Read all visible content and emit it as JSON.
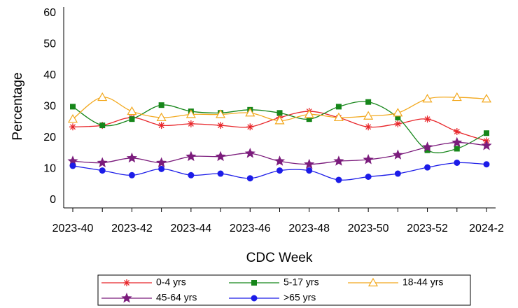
{
  "chart_data": {
    "type": "line",
    "x_label": "CDC Week",
    "y_label": "Percentage",
    "categories": [
      "2023-40",
      null,
      "2023-42",
      null,
      "2023-44",
      null,
      "2023-46",
      null,
      "2023-48",
      null,
      "2023-50",
      null,
      "2023-52",
      null,
      "2024-2"
    ],
    "series": [
      {
        "name": "0-4 yrs",
        "color": "#e8262a",
        "marker": "asterisk",
        "values": [
          23.5,
          24,
          26.5,
          24,
          24.5,
          24,
          23.5,
          26.5,
          28.5,
          26.5,
          23.5,
          24.5,
          26,
          22,
          19
        ]
      },
      {
        "name": "5-17 yrs",
        "color": "#16861a",
        "marker": "square",
        "values": [
          30,
          24,
          26,
          30.5,
          28.5,
          28,
          29,
          28,
          26,
          30,
          31.5,
          26.5,
          16,
          16.5,
          21.5
        ]
      },
      {
        "name": "18-44 yrs",
        "color": "#f2a81d",
        "marker": "triangle",
        "values": [
          26,
          33,
          28.5,
          26.5,
          27.5,
          27.5,
          28,
          25.5,
          27.5,
          26.5,
          27,
          28,
          32.5,
          33,
          32.5
        ]
      },
      {
        "name": "45-64 yrs",
        "color": "#7b1c7c",
        "marker": "star",
        "values": [
          12.5,
          12,
          13.5,
          12,
          14,
          14,
          15,
          12.5,
          11.5,
          12.5,
          13,
          14.5,
          17,
          18.5,
          17.5
        ]
      },
      {
        "name": ">65 yrs",
        "color": "#1c1ce8",
        "marker": "circle",
        "values": [
          11,
          9.5,
          8,
          10,
          8,
          8.5,
          7,
          9.5,
          9.5,
          6.5,
          7.5,
          8.5,
          10.5,
          12,
          11.5
        ]
      }
    ],
    "ylim": [
      -2.5,
      62
    ],
    "yticks": [
      0,
      10,
      20,
      30,
      40,
      50,
      60
    ],
    "grid": false,
    "legend": "bottom"
  }
}
